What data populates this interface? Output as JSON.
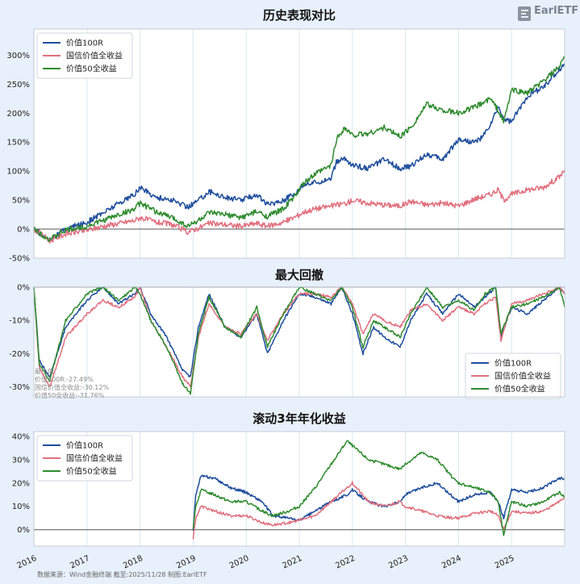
{
  "logo": {
    "name": "EarlETF",
    "subtitle": ""
  },
  "footer": "数据来源：Wind金融终端 截至:2025/11/28 制图:EarlETF",
  "x_axis": {
    "ticks": [
      "2016",
      "2017",
      "2018",
      "2019",
      "2020",
      "2021",
      "2022",
      "2023",
      "2024",
      "2025"
    ],
    "range": [
      2016.0,
      2026.0
    ]
  },
  "colors": {
    "value100r": "#1f4e9c",
    "guoxin": "#e0707f",
    "value50": "#2e8b2e",
    "zero": "#555555",
    "grid": "#dde6f0"
  },
  "chart_data": [
    {
      "id": "cumulative",
      "type": "line",
      "title": "历史表现对比",
      "legend_position": "top-left",
      "y_tick_labels": [
        "300%",
        "250%",
        "200%",
        "150%",
        "100%",
        "50%",
        "0%",
        "-50%"
      ],
      "ylim": [
        -0.5,
        3.45
      ],
      "series": [
        {
          "name": "价值100R",
          "color": "#1f4e9c",
          "x": [
            2016.0,
            2016.3,
            2016.6,
            2017.0,
            2017.3,
            2017.6,
            2017.9,
            2018.0,
            2018.3,
            2018.6,
            2018.9,
            2019.1,
            2019.3,
            2019.6,
            2019.9,
            2020.2,
            2020.4,
            2020.7,
            2020.9,
            2021.1,
            2021.3,
            2021.6,
            2021.7,
            2021.85,
            2022.0,
            2022.3,
            2022.6,
            2022.9,
            2023.1,
            2023.4,
            2023.7,
            2024.0,
            2024.3,
            2024.45,
            2024.6,
            2024.75,
            2024.85,
            2025.0,
            2025.3,
            2025.6,
            2025.9,
            2026.0
          ],
          "y": [
            0.0,
            -0.18,
            0.0,
            0.12,
            0.28,
            0.45,
            0.6,
            0.72,
            0.55,
            0.5,
            0.38,
            0.5,
            0.65,
            0.55,
            0.5,
            0.6,
            0.42,
            0.5,
            0.6,
            0.78,
            0.8,
            0.88,
            1.15,
            1.22,
            1.1,
            1.05,
            1.2,
            1.05,
            1.08,
            1.3,
            1.2,
            1.55,
            1.5,
            1.58,
            1.8,
            2.1,
            1.9,
            1.85,
            2.3,
            2.45,
            2.75,
            2.85
          ]
        },
        {
          "name": "国信价值全收益",
          "color": "#e0707f",
          "x": [
            2016.0,
            2016.3,
            2016.6,
            2017.0,
            2017.3,
            2017.6,
            2017.9,
            2018.0,
            2018.3,
            2018.6,
            2018.9,
            2019.1,
            2019.3,
            2019.6,
            2019.9,
            2020.2,
            2020.4,
            2020.7,
            2020.9,
            2021.1,
            2021.3,
            2021.6,
            2021.9,
            2022.0,
            2022.3,
            2022.6,
            2022.9,
            2023.1,
            2023.4,
            2023.7,
            2024.0,
            2024.3,
            2024.6,
            2024.75,
            2024.85,
            2025.0,
            2025.3,
            2025.6,
            2025.9,
            2026.0
          ],
          "y": [
            0.0,
            -0.2,
            -0.08,
            -0.02,
            0.05,
            0.1,
            0.15,
            0.2,
            0.12,
            0.08,
            -0.05,
            0.02,
            0.1,
            0.08,
            0.05,
            0.1,
            0.05,
            0.12,
            0.2,
            0.3,
            0.35,
            0.4,
            0.45,
            0.5,
            0.45,
            0.42,
            0.4,
            0.48,
            0.42,
            0.45,
            0.4,
            0.52,
            0.6,
            0.68,
            0.5,
            0.6,
            0.68,
            0.72,
            0.9,
            1.02
          ]
        },
        {
          "name": "价值50全收益",
          "color": "#2e8b2e",
          "x": [
            2016.0,
            2016.3,
            2016.6,
            2017.0,
            2017.3,
            2017.6,
            2017.9,
            2018.0,
            2018.3,
            2018.6,
            2018.9,
            2019.1,
            2019.3,
            2019.6,
            2019.9,
            2020.2,
            2020.4,
            2020.7,
            2020.9,
            2021.1,
            2021.3,
            2021.6,
            2021.7,
            2021.85,
            2022.0,
            2022.3,
            2022.6,
            2022.9,
            2023.1,
            2023.4,
            2023.7,
            2024.0,
            2024.3,
            2024.6,
            2024.75,
            2024.85,
            2025.0,
            2025.3,
            2025.6,
            2025.9,
            2026.0
          ],
          "y": [
            0.0,
            -0.18,
            -0.02,
            0.05,
            0.15,
            0.25,
            0.35,
            0.45,
            0.3,
            0.2,
            0.05,
            0.15,
            0.28,
            0.25,
            0.2,
            0.3,
            0.22,
            0.35,
            0.55,
            0.8,
            0.95,
            1.1,
            1.55,
            1.75,
            1.62,
            1.65,
            1.75,
            1.6,
            1.75,
            2.15,
            2.05,
            2.0,
            2.1,
            2.25,
            2.05,
            1.85,
            2.4,
            2.35,
            2.55,
            2.8,
            2.95
          ]
        }
      ]
    },
    {
      "id": "drawdown",
      "type": "line",
      "title": "最大回撤",
      "legend_position": "bottom-right",
      "y_tick_labels": [
        "0%",
        "-10%",
        "-20%",
        "-30%"
      ],
      "ylim": [
        -0.33,
        0.0
      ],
      "annotation": [
        "最小值:",
        "价值100R:-27.49%",
        "国信价值全收益:-30.12%",
        "价值50全收益:-31.76%"
      ],
      "series": [
        {
          "name": "价值100R",
          "color": "#1f4e9c",
          "x": [
            2016.0,
            2016.1,
            2016.3,
            2016.6,
            2017.0,
            2017.3,
            2017.6,
            2017.9,
            2018.0,
            2018.2,
            2018.5,
            2018.8,
            2018.95,
            2019.1,
            2019.3,
            2019.6,
            2019.9,
            2020.2,
            2020.4,
            2020.7,
            2021.0,
            2021.3,
            2021.6,
            2021.8,
            2022.0,
            2022.2,
            2022.4,
            2022.6,
            2022.9,
            2023.1,
            2023.4,
            2023.7,
            2024.0,
            2024.3,
            2024.5,
            2024.7,
            2024.8,
            2025.0,
            2025.3,
            2025.6,
            2025.9,
            2026.0
          ],
          "y": [
            0.0,
            -0.22,
            -0.27,
            -0.12,
            -0.04,
            0.0,
            -0.05,
            -0.02,
            0.0,
            -0.08,
            -0.15,
            -0.25,
            -0.27,
            -0.12,
            -0.02,
            -0.12,
            -0.15,
            -0.08,
            -0.2,
            -0.1,
            -0.02,
            -0.03,
            -0.05,
            0.0,
            -0.08,
            -0.2,
            -0.12,
            -0.15,
            -0.18,
            -0.1,
            -0.02,
            -0.08,
            -0.02,
            -0.06,
            -0.03,
            0.0,
            -0.15,
            -0.06,
            -0.08,
            -0.04,
            0.0,
            -0.02
          ]
        },
        {
          "name": "国信价值全收益",
          "color": "#e0707f",
          "x": [
            2016.0,
            2016.1,
            2016.3,
            2016.6,
            2017.0,
            2017.3,
            2017.6,
            2017.9,
            2018.0,
            2018.2,
            2018.5,
            2018.8,
            2018.95,
            2019.1,
            2019.3,
            2019.6,
            2019.9,
            2020.2,
            2020.4,
            2020.7,
            2021.0,
            2021.3,
            2021.6,
            2021.8,
            2022.0,
            2022.2,
            2022.4,
            2022.6,
            2022.9,
            2023.1,
            2023.4,
            2023.7,
            2024.0,
            2024.3,
            2024.5,
            2024.7,
            2024.8,
            2025.0,
            2025.3,
            2025.6,
            2025.9,
            2026.0
          ],
          "y": [
            0.0,
            -0.24,
            -0.3,
            -0.15,
            -0.08,
            -0.04,
            -0.06,
            -0.03,
            0.0,
            -0.1,
            -0.18,
            -0.27,
            -0.3,
            -0.15,
            -0.05,
            -0.12,
            -0.14,
            -0.08,
            -0.16,
            -0.08,
            -0.02,
            -0.02,
            -0.03,
            0.0,
            -0.05,
            -0.14,
            -0.08,
            -0.1,
            -0.12,
            -0.07,
            -0.05,
            -0.1,
            -0.06,
            -0.08,
            -0.05,
            -0.03,
            -0.16,
            -0.05,
            -0.04,
            -0.02,
            0.0,
            -0.02
          ]
        },
        {
          "name": "价值50全收益",
          "color": "#2e8b2e",
          "x": [
            2016.0,
            2016.1,
            2016.3,
            2016.6,
            2017.0,
            2017.3,
            2017.6,
            2017.9,
            2018.0,
            2018.2,
            2018.5,
            2018.8,
            2018.95,
            2019.1,
            2019.3,
            2019.6,
            2019.9,
            2020.2,
            2020.4,
            2020.7,
            2021.0,
            2021.3,
            2021.6,
            2021.8,
            2022.0,
            2022.2,
            2022.4,
            2022.6,
            2022.9,
            2023.1,
            2023.4,
            2023.7,
            2024.0,
            2024.3,
            2024.5,
            2024.7,
            2024.8,
            2025.0,
            2025.3,
            2025.6,
            2025.9,
            2026.0
          ],
          "y": [
            0.0,
            -0.23,
            -0.28,
            -0.1,
            -0.02,
            0.0,
            -0.04,
            0.0,
            -0.02,
            -0.1,
            -0.18,
            -0.29,
            -0.32,
            -0.14,
            -0.03,
            -0.12,
            -0.15,
            -0.06,
            -0.18,
            -0.08,
            0.0,
            -0.02,
            -0.04,
            0.0,
            -0.06,
            -0.18,
            -0.1,
            -0.12,
            -0.15,
            -0.08,
            0.0,
            -0.06,
            -0.04,
            -0.07,
            -0.02,
            0.0,
            -0.14,
            -0.06,
            -0.05,
            -0.03,
            0.0,
            -0.06
          ]
        }
      ]
    },
    {
      "id": "rolling3y",
      "type": "line",
      "title": "滚动3年年化收益",
      "legend_position": "top-left",
      "y_tick_labels": [
        "40%",
        "30%",
        "20%",
        "10%",
        "0%"
      ],
      "ylim": [
        -0.07,
        0.42
      ],
      "series": [
        {
          "name": "价值100R",
          "color": "#1f4e9c",
          "x": [
            2019.0,
            2019.05,
            2019.15,
            2019.4,
            2019.7,
            2020.0,
            2020.3,
            2020.5,
            2020.8,
            2021.0,
            2021.3,
            2021.6,
            2021.9,
            2022.0,
            2022.3,
            2022.6,
            2022.9,
            2023.0,
            2023.3,
            2023.6,
            2023.9,
            2024.0,
            2024.3,
            2024.6,
            2024.75,
            2024.85,
            2025.0,
            2025.3,
            2025.6,
            2025.9,
            2026.0
          ],
          "y": [
            0.0,
            0.15,
            0.23,
            0.22,
            0.18,
            0.16,
            0.12,
            0.06,
            0.05,
            0.04,
            0.08,
            0.12,
            0.15,
            0.17,
            0.12,
            0.1,
            0.12,
            0.15,
            0.18,
            0.2,
            0.14,
            0.12,
            0.15,
            0.16,
            0.12,
            0.05,
            0.17,
            0.16,
            0.18,
            0.22,
            0.22
          ]
        },
        {
          "name": "国信价值全收益",
          "color": "#e0707f",
          "x": [
            2019.0,
            2019.05,
            2019.15,
            2019.4,
            2019.7,
            2020.0,
            2020.3,
            2020.5,
            2020.8,
            2021.0,
            2021.3,
            2021.6,
            2021.9,
            2022.0,
            2022.3,
            2022.6,
            2022.9,
            2023.0,
            2023.3,
            2023.6,
            2023.9,
            2024.0,
            2024.3,
            2024.6,
            2024.75,
            2024.85,
            2025.0,
            2025.3,
            2025.6,
            2025.9,
            2026.0
          ],
          "y": [
            -0.04,
            0.05,
            0.1,
            0.08,
            0.06,
            0.06,
            0.03,
            0.02,
            0.03,
            0.04,
            0.06,
            0.12,
            0.18,
            0.2,
            0.12,
            0.1,
            0.12,
            0.1,
            0.08,
            0.06,
            0.05,
            0.05,
            0.07,
            0.08,
            0.06,
            0.0,
            0.08,
            0.07,
            0.08,
            0.12,
            0.14
          ]
        },
        {
          "name": "价值50全收益",
          "color": "#2e8b2e",
          "x": [
            2019.0,
            2019.05,
            2019.15,
            2019.4,
            2019.7,
            2020.0,
            2020.3,
            2020.5,
            2020.8,
            2021.0,
            2021.3,
            2021.6,
            2021.9,
            2022.0,
            2022.3,
            2022.6,
            2022.9,
            2023.0,
            2023.3,
            2023.6,
            2023.9,
            2024.0,
            2024.3,
            2024.6,
            2024.75,
            2024.85,
            2025.0,
            2025.3,
            2025.6,
            2025.9,
            2026.0
          ],
          "y": [
            0.0,
            0.1,
            0.17,
            0.15,
            0.12,
            0.12,
            0.08,
            0.06,
            0.08,
            0.1,
            0.18,
            0.28,
            0.38,
            0.36,
            0.3,
            0.28,
            0.26,
            0.28,
            0.33,
            0.3,
            0.22,
            0.2,
            0.18,
            0.16,
            0.12,
            -0.02,
            0.12,
            0.1,
            0.12,
            0.16,
            0.14
          ]
        }
      ]
    }
  ]
}
